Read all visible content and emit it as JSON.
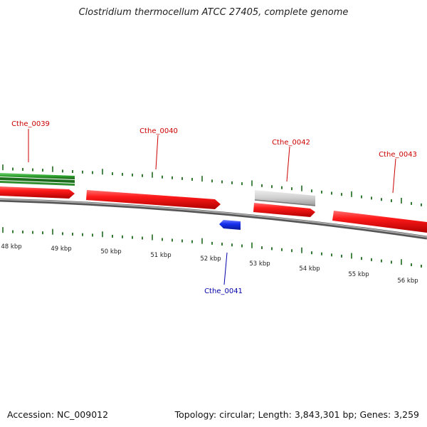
{
  "title": "Clostridium thermocellum ATCC 27405, complete genome",
  "footer": {
    "accession": "Accession: NC_009012",
    "summary": "Topology: circular; Length: 3,843,301 bp; Genes: 3,259"
  },
  "colors": {
    "forward_cds": "#ee1111",
    "reverse_cds": "#1133dd",
    "pseudo": "#bbbbbb",
    "rna_green": "#2a9a2a",
    "backbone": "#888888",
    "tick": "#1f6a1f",
    "label_forward": "#cc0000",
    "label_reverse": "#0000aa"
  },
  "kbp_labels": [
    "48 kbp",
    "49 kbp",
    "50 kbp",
    "51 kbp",
    "52 kbp",
    "53 kbp",
    "54 kbp",
    "55 kbp",
    "56 kbp"
  ],
  "genes": [
    {
      "name": "Cthe_0039",
      "strand": "forward"
    },
    {
      "name": "Cthe_0040",
      "strand": "forward"
    },
    {
      "name": "Cthe_0041",
      "strand": "reverse"
    },
    {
      "name": "Cthe_0042",
      "strand": "forward"
    },
    {
      "name": "Cthe_0043",
      "strand": "forward"
    }
  ]
}
